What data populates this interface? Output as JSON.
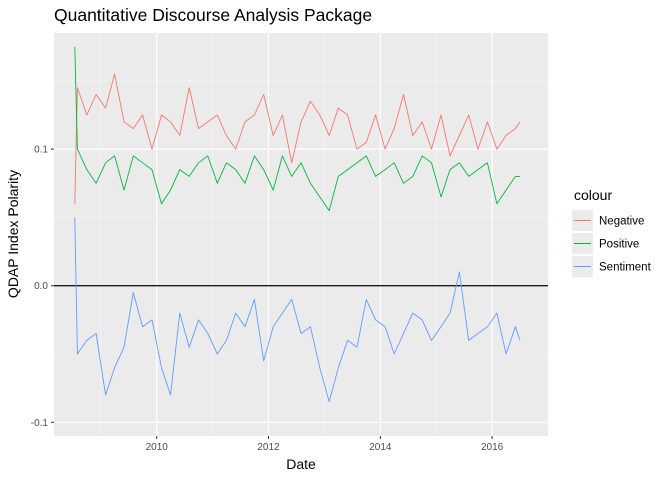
{
  "chart_data": {
    "type": "line",
    "title": "Quantitative Discourse Analysis Package",
    "xlabel": "Date",
    "ylabel": "QDAP Index Polarity",
    "xlim": [
      "2008-03-01",
      "2016-12-31"
    ],
    "ylim": [
      -0.11,
      0.185
    ],
    "x_ticks": [
      "2010-01-01",
      "2012-01-01",
      "2014-01-01",
      "2016-01-01"
    ],
    "x_tick_labels": [
      "2010",
      "2012",
      "2014",
      "2016"
    ],
    "y_ticks": [
      -0.1,
      0.0,
      0.1
    ],
    "y_tick_labels": [
      "-0.1",
      "0.0",
      "0.1"
    ],
    "grid": true,
    "hline": 0.0,
    "legend": {
      "title": "colour",
      "position": "right",
      "entries": [
        "Negative",
        "Positive",
        "Sentiment"
      ]
    },
    "series": [
      {
        "name": "Negative",
        "color": "#F8766D",
        "x": [
          "2008-07-15",
          "2008-08-01",
          "2008-10-01",
          "2008-12-01",
          "2009-02-01",
          "2009-04-01",
          "2009-06-01",
          "2009-08-01",
          "2009-10-01",
          "2009-12-01",
          "2010-02-01",
          "2010-04-01",
          "2010-06-01",
          "2010-08-01",
          "2010-10-01",
          "2010-12-01",
          "2011-02-01",
          "2011-04-01",
          "2011-06-01",
          "2011-08-01",
          "2011-10-01",
          "2011-12-01",
          "2012-02-01",
          "2012-04-01",
          "2012-06-01",
          "2012-08-01",
          "2012-10-01",
          "2012-12-01",
          "2013-02-01",
          "2013-04-01",
          "2013-06-01",
          "2013-08-01",
          "2013-10-01",
          "2013-12-01",
          "2014-02-01",
          "2014-04-01",
          "2014-06-01",
          "2014-08-01",
          "2014-10-01",
          "2014-12-01",
          "2015-02-01",
          "2015-04-01",
          "2015-06-01",
          "2015-08-01",
          "2015-10-01",
          "2015-12-01",
          "2016-02-01",
          "2016-04-01",
          "2016-06-01",
          "2016-07-01"
        ],
        "values": [
          0.06,
          0.145,
          0.125,
          0.14,
          0.13,
          0.155,
          0.12,
          0.115,
          0.125,
          0.1,
          0.125,
          0.12,
          0.11,
          0.145,
          0.115,
          0.12,
          0.125,
          0.11,
          0.1,
          0.12,
          0.125,
          0.14,
          0.11,
          0.125,
          0.09,
          0.12,
          0.135,
          0.125,
          0.11,
          0.13,
          0.125,
          0.1,
          0.105,
          0.125,
          0.1,
          0.115,
          0.14,
          0.11,
          0.12,
          0.1,
          0.125,
          0.095,
          0.11,
          0.125,
          0.1,
          0.12,
          0.1,
          0.11,
          0.115,
          0.12
        ]
      },
      {
        "name": "Positive",
        "color": "#00BA38",
        "x": [
          "2008-07-15",
          "2008-08-01",
          "2008-10-01",
          "2008-12-01",
          "2009-02-01",
          "2009-04-01",
          "2009-06-01",
          "2009-08-01",
          "2009-10-01",
          "2009-12-01",
          "2010-02-01",
          "2010-04-01",
          "2010-06-01",
          "2010-08-01",
          "2010-10-01",
          "2010-12-01",
          "2011-02-01",
          "2011-04-01",
          "2011-06-01",
          "2011-08-01",
          "2011-10-01",
          "2011-12-01",
          "2012-02-01",
          "2012-04-01",
          "2012-06-01",
          "2012-08-01",
          "2012-10-01",
          "2012-12-01",
          "2013-02-01",
          "2013-04-01",
          "2013-06-01",
          "2013-08-01",
          "2013-10-01",
          "2013-12-01",
          "2014-02-01",
          "2014-04-01",
          "2014-06-01",
          "2014-08-01",
          "2014-10-01",
          "2014-12-01",
          "2015-02-01",
          "2015-04-01",
          "2015-06-01",
          "2015-08-01",
          "2015-10-01",
          "2015-12-01",
          "2016-02-01",
          "2016-04-01",
          "2016-06-01",
          "2016-07-01"
        ],
        "values": [
          0.175,
          0.1,
          0.085,
          0.075,
          0.09,
          0.095,
          0.07,
          0.095,
          0.09,
          0.085,
          0.06,
          0.07,
          0.085,
          0.08,
          0.09,
          0.095,
          0.075,
          0.09,
          0.085,
          0.075,
          0.095,
          0.085,
          0.07,
          0.095,
          0.08,
          0.09,
          0.075,
          0.065,
          0.055,
          0.08,
          0.085,
          0.09,
          0.095,
          0.08,
          0.085,
          0.09,
          0.075,
          0.08,
          0.095,
          0.09,
          0.065,
          0.085,
          0.09,
          0.08,
          0.085,
          0.09,
          0.06,
          0.07,
          0.08,
          0.08
        ]
      },
      {
        "name": "Sentiment",
        "color": "#619CFF",
        "x": [
          "2008-07-15",
          "2008-08-01",
          "2008-10-01",
          "2008-12-01",
          "2009-02-01",
          "2009-04-01",
          "2009-06-01",
          "2009-08-01",
          "2009-10-01",
          "2009-12-01",
          "2010-02-01",
          "2010-04-01",
          "2010-06-01",
          "2010-08-01",
          "2010-10-01",
          "2010-12-01",
          "2011-02-01",
          "2011-04-01",
          "2011-06-01",
          "2011-08-01",
          "2011-10-01",
          "2011-12-01",
          "2012-02-01",
          "2012-04-01",
          "2012-06-01",
          "2012-08-01",
          "2012-10-01",
          "2012-12-01",
          "2013-02-01",
          "2013-04-01",
          "2013-06-01",
          "2013-08-01",
          "2013-10-01",
          "2013-12-01",
          "2014-02-01",
          "2014-04-01",
          "2014-06-01",
          "2014-08-01",
          "2014-10-01",
          "2014-12-01",
          "2015-02-01",
          "2015-04-01",
          "2015-06-01",
          "2015-08-01",
          "2015-10-01",
          "2015-12-01",
          "2016-02-01",
          "2016-04-01",
          "2016-06-01",
          "2016-07-01"
        ],
        "values": [
          0.05,
          -0.05,
          -0.04,
          -0.035,
          -0.08,
          -0.06,
          -0.045,
          -0.005,
          -0.03,
          -0.025,
          -0.06,
          -0.08,
          -0.02,
          -0.045,
          -0.025,
          -0.035,
          -0.05,
          -0.04,
          -0.02,
          -0.03,
          -0.01,
          -0.055,
          -0.03,
          -0.02,
          -0.01,
          -0.035,
          -0.03,
          -0.06,
          -0.085,
          -0.06,
          -0.04,
          -0.045,
          -0.01,
          -0.025,
          -0.03,
          -0.05,
          -0.035,
          -0.02,
          -0.025,
          -0.04,
          -0.03,
          -0.02,
          0.01,
          -0.04,
          -0.035,
          -0.03,
          -0.02,
          -0.05,
          -0.03,
          -0.04
        ]
      }
    ]
  }
}
